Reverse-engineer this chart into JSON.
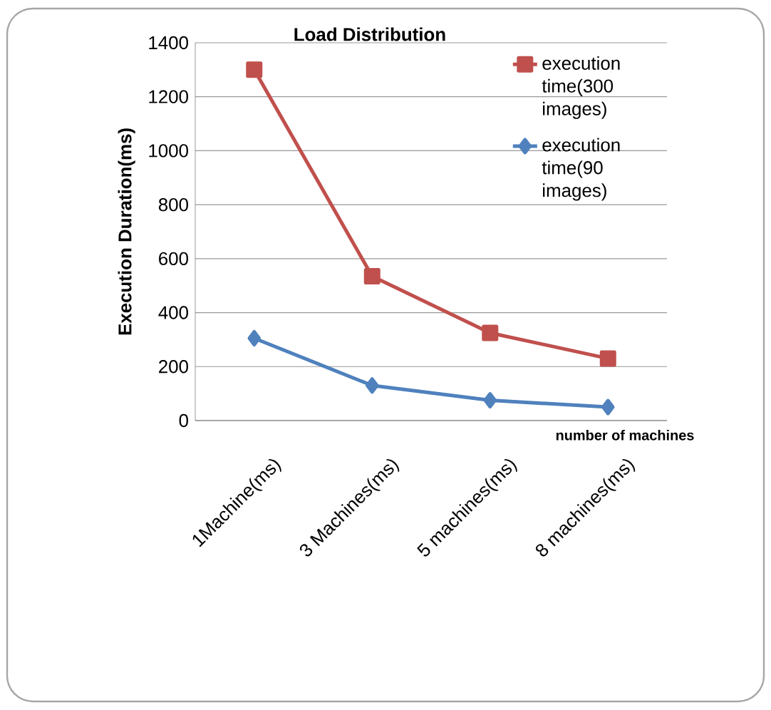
{
  "chart_data": {
    "type": "line",
    "title": "Load Distribution",
    "xlabel": "number of machines",
    "ylabel": "Execution Duration(ms)",
    "categories": [
      "1Machine(ms)",
      "3 Machines(ms)",
      "5 machines(ms)",
      "8 machines(ms)"
    ],
    "series": [
      {
        "name": "execution time(300 images)",
        "color": "#c0504d",
        "marker": "square",
        "values": [
          1300,
          535,
          325,
          230
        ]
      },
      {
        "name": "execution time(90 images)",
        "color": "#4f81bd",
        "marker": "diamond",
        "values": [
          305,
          130,
          75,
          50
        ]
      }
    ],
    "ylim": [
      0,
      1400
    ],
    "yticks": [
      0,
      200,
      400,
      600,
      800,
      1000,
      1200,
      1400
    ],
    "grid": "y",
    "legend": "top right"
  }
}
